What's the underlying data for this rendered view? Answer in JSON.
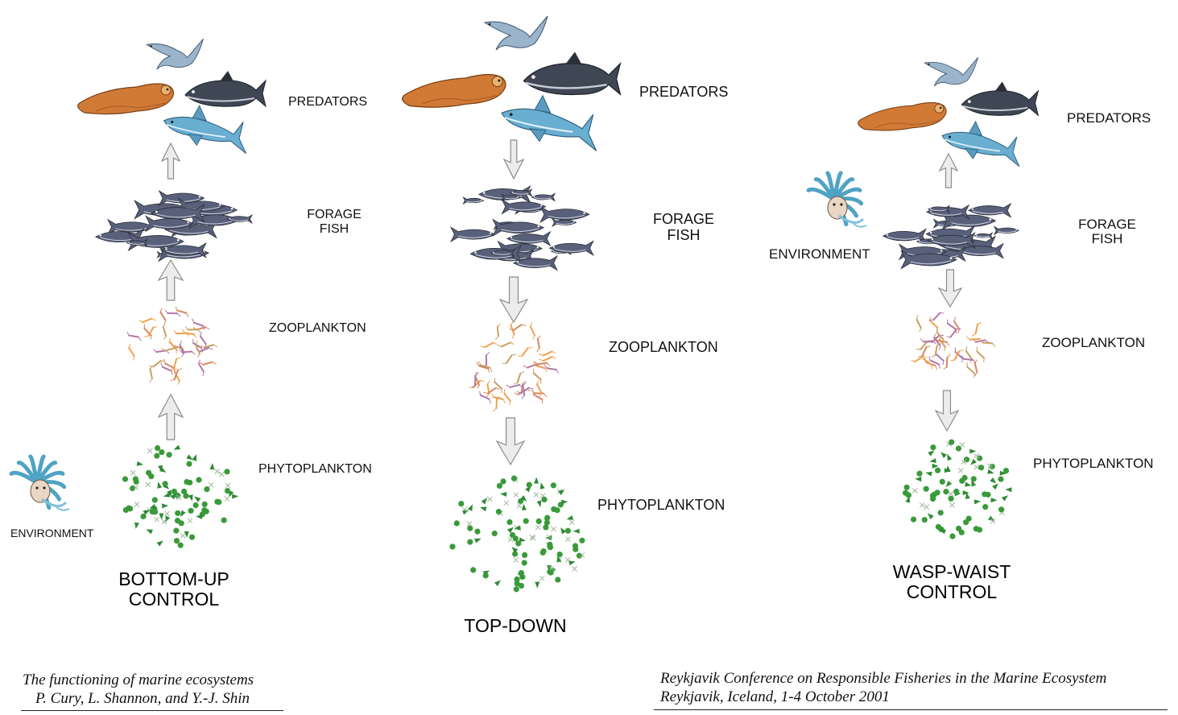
{
  "panels": [
    {
      "id": "bottom-up",
      "title_lines": [
        "BOTTOM-UP",
        "CONTROL"
      ],
      "levels": {
        "predators": "PREDATORS",
        "forage_fish_lines": [
          "FORAGE",
          "FISH"
        ],
        "zooplankton": "ZOOPLANKTON",
        "phytoplankton": "PHYTOPLANKTON"
      },
      "environment": "ENVIRONMENT",
      "arrow_direction": "up"
    },
    {
      "id": "top-down",
      "title_lines": [
        "TOP-DOWN"
      ],
      "levels": {
        "predators": "PREDATORS",
        "forage_fish_lines": [
          "FORAGE",
          "FISH"
        ],
        "zooplankton": "ZOOPLANKTON",
        "phytoplankton": "PHYTOPLANKTON"
      },
      "arrow_direction": "down"
    },
    {
      "id": "wasp-waist",
      "title_lines": [
        "WASP-WAIST",
        "CONTROL"
      ],
      "levels": {
        "predators": "PREDATORS",
        "forage_fish_lines": [
          "FORAGE",
          "FISH"
        ],
        "zooplankton": "ZOOPLANKTON",
        "phytoplankton": "PHYTOPLANKTON"
      },
      "environment": "ENVIRONMENT",
      "arrow_direction": "mixed"
    }
  ],
  "citation_left": [
    "The functioning of marine ecosystems",
    "P. Cury, L. Shannon, and Y.-J. Shin"
  ],
  "citation_right": [
    "Reykjavik Conference on Responsible Fisheries in the Marine Ecosystem",
    "Reykjavik, Iceland, 1-4 October 2001"
  ],
  "colors": {
    "seal": "#d07a36",
    "tuna": "#3f4654",
    "shark": "#6aaed1",
    "bird": "#9ab4cc",
    "forage_fish": "#59607a",
    "phyto": "#3a9a3a",
    "zoo_orange": "#f0a04a",
    "zoo_purple": "#b078a8",
    "arrow_fill": "#ececec",
    "arrow_stroke": "#8c8c8c",
    "environment_hair": "#4fa3c4"
  }
}
